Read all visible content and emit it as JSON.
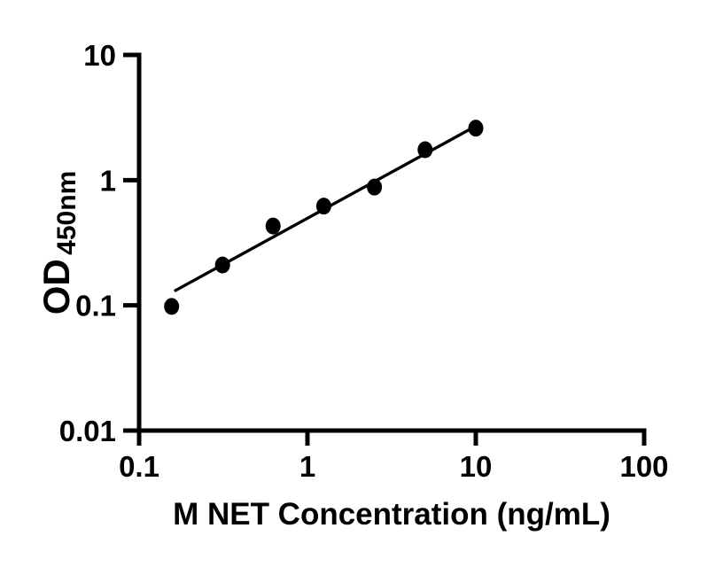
{
  "chart_data": {
    "type": "scatter",
    "title": "",
    "xlabel": "M NET Concentration (ng/mL)",
    "ylabel": "OD",
    "ylabel_subscript": "450nm",
    "x_scale": "log",
    "y_scale": "log",
    "xlim": [
      0.1,
      100
    ],
    "ylim": [
      0.01,
      10
    ],
    "x_ticks": [
      0.1,
      1,
      10,
      100
    ],
    "x_tick_labels": [
      "0.1",
      "1",
      "10",
      "100"
    ],
    "y_ticks": [
      0.01,
      0.1,
      1,
      10
    ],
    "y_tick_labels": [
      "0.01",
      "0.1",
      "1",
      "10"
    ],
    "grid": false,
    "legend": "none",
    "colors": {
      "background": "#ffffff",
      "axis": "#000000",
      "marker": "#000000",
      "line": "#000000"
    },
    "series": [
      {
        "name": "standard-points",
        "type": "scatter",
        "marker": "filled-circle",
        "points": [
          {
            "x": 0.156,
            "y": 0.098
          },
          {
            "x": 0.313,
            "y": 0.21
          },
          {
            "x": 0.625,
            "y": 0.43
          },
          {
            "x": 1.25,
            "y": 0.62
          },
          {
            "x": 2.5,
            "y": 0.88
          },
          {
            "x": 5,
            "y": 1.75
          },
          {
            "x": 10,
            "y": 2.6
          }
        ]
      },
      {
        "name": "fit-line",
        "type": "line",
        "points": [
          {
            "x": 0.162,
            "y": 0.13
          },
          {
            "x": 10.1,
            "y": 2.72
          }
        ]
      }
    ]
  }
}
